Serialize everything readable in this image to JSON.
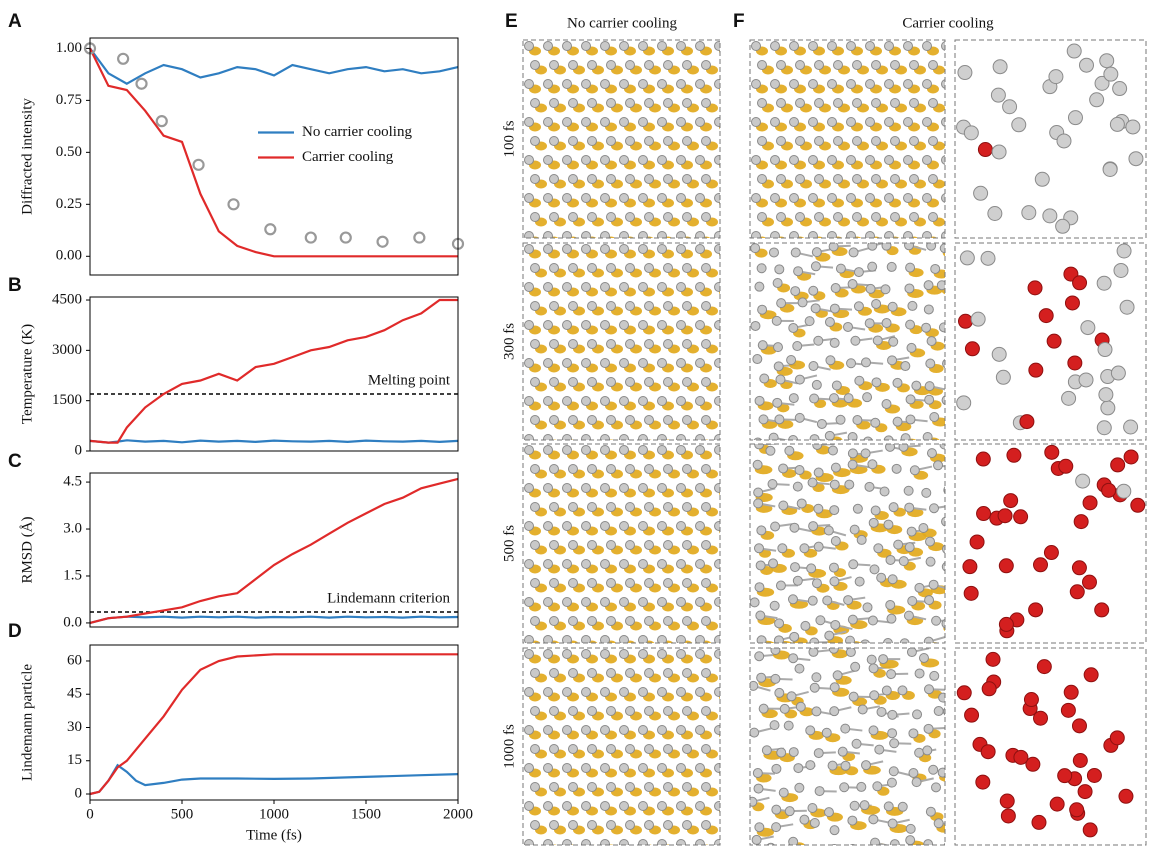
{
  "chart_data": [
    {
      "type": "line",
      "panel": "A",
      "ylabel": "Diffracted intensity",
      "xlim": [
        0,
        2000
      ],
      "ylim": [
        -0.09,
        1.05
      ],
      "yticks": [
        {
          "value": 0,
          "label": "0.00"
        },
        {
          "value": 0.25,
          "label": "0.25"
        },
        {
          "value": 0.5,
          "label": "0.50"
        },
        {
          "value": 0.75,
          "label": "0.75"
        },
        {
          "value": 1,
          "label": "1.00"
        }
      ],
      "legend": "center right",
      "x": [
        0,
        100,
        200,
        300,
        400,
        500,
        600,
        700,
        800,
        900,
        1000,
        1100,
        1200,
        1300,
        1400,
        1500,
        1600,
        1700,
        1800,
        1900,
        2000
      ],
      "series": [
        {
          "name": "No carrier cooling",
          "color": "#2f7ec1",
          "values": [
            1.0,
            0.88,
            0.83,
            0.88,
            0.92,
            0.9,
            0.86,
            0.88,
            0.91,
            0.9,
            0.87,
            0.92,
            0.9,
            0.88,
            0.9,
            0.91,
            0.89,
            0.9,
            0.88,
            0.89,
            0.91
          ]
        },
        {
          "name": "Carrier cooling",
          "color": "#e02a2a",
          "values": [
            1.0,
            0.82,
            0.8,
            0.7,
            0.58,
            0.55,
            0.3,
            0.12,
            0.05,
            0.02,
            0,
            0,
            0,
            0,
            0,
            0,
            0,
            0,
            0,
            0,
            0
          ]
        },
        {
          "type": "scatter",
          "color": "#999999",
          "x": [
            0,
            180,
            280,
            390,
            590,
            780,
            980,
            1200,
            1390,
            1590,
            1790,
            2000
          ],
          "values": [
            1.0,
            0.95,
            0.83,
            0.65,
            0.44,
            0.25,
            0.13,
            0.09,
            0.09,
            0.07,
            0.09,
            0.06
          ]
        }
      ]
    },
    {
      "type": "line",
      "panel": "B",
      "ylabel": "Temperature (K)",
      "xlim": [
        0,
        2000
      ],
      "ylim": [
        0,
        4590
      ],
      "yticks": [
        0,
        1500,
        3000,
        4500
      ],
      "hlines": [
        {
          "value": 1700,
          "label": "Melting point"
        }
      ],
      "x": [
        0,
        100,
        150,
        200,
        300,
        400,
        500,
        600,
        700,
        800,
        900,
        1000,
        1100,
        1200,
        1300,
        1400,
        1500,
        1600,
        1700,
        1800,
        1900,
        2000
      ],
      "series": [
        {
          "color": "#2f7ec1",
          "values": [
            300,
            250,
            280,
            320,
            280,
            300,
            260,
            310,
            280,
            300,
            270,
            310,
            290,
            280,
            300,
            270,
            310,
            290,
            280,
            300,
            270,
            300
          ]
        },
        {
          "color": "#e02a2a",
          "values": [
            300,
            250,
            250,
            700,
            1300,
            1700,
            2000,
            2100,
            2300,
            2100,
            2500,
            2600,
            2800,
            3000,
            3100,
            3300,
            3400,
            3600,
            3900,
            4100,
            4500,
            4500
          ]
        }
      ]
    },
    {
      "type": "line",
      "panel": "C",
      "ylabel": "RMSD (Å)",
      "xlim": [
        0,
        2000
      ],
      "ylim": [
        -0.13,
        4.79
      ],
      "yticks": [
        {
          "value": 0,
          "label": "0.0"
        },
        1.5,
        {
          "value": 3,
          "label": "3.0"
        },
        4.5
      ],
      "hlines": [
        {
          "value": 0.35,
          "label": "Lindemann criterion"
        }
      ],
      "x": [
        0,
        100,
        200,
        300,
        400,
        500,
        600,
        700,
        800,
        900,
        1000,
        1100,
        1200,
        1300,
        1400,
        1500,
        1600,
        1700,
        1800,
        1900,
        2000
      ],
      "series": [
        {
          "color": "#2f7ec1",
          "values": [
            0,
            0.15,
            0.2,
            0.18,
            0.2,
            0.17,
            0.2,
            0.18,
            0.2,
            0.17,
            0.19,
            0.18,
            0.2,
            0.17,
            0.2,
            0.18,
            0.19,
            0.17,
            0.2,
            0.18,
            0.19
          ]
        },
        {
          "color": "#e02a2a",
          "values": [
            0,
            0.15,
            0.2,
            0.3,
            0.4,
            0.5,
            0.7,
            0.85,
            0.95,
            1.4,
            1.85,
            2.2,
            2.5,
            2.85,
            3.2,
            3.5,
            3.8,
            4.0,
            4.3,
            4.45,
            4.6
          ]
        }
      ]
    },
    {
      "type": "line",
      "panel": "D",
      "ylabel": "Lindemann particle",
      "xlabel": "Time (fs)",
      "xlim": [
        0,
        2000
      ],
      "ylim": [
        -2.7,
        67.2
      ],
      "xticks": [
        0,
        500,
        1000,
        1500,
        2000
      ],
      "yticks": [
        0,
        15,
        30,
        45,
        60
      ],
      "x": [
        0,
        50,
        100,
        150,
        200,
        250,
        300,
        400,
        500,
        600,
        700,
        800,
        1000,
        1200,
        1400,
        1600,
        1800,
        2000
      ],
      "series": [
        {
          "color": "#2f7ec1",
          "values": [
            0,
            1,
            6,
            13,
            10,
            6,
            4,
            5,
            6.5,
            7,
            7,
            7,
            6.8,
            7,
            7.5,
            8,
            8.5,
            9
          ]
        },
        {
          "color": "#e02a2a",
          "values": [
            0,
            1,
            6,
            12,
            15,
            20,
            25,
            35,
            47,
            56,
            60,
            62,
            63,
            63,
            63,
            63,
            63,
            63
          ]
        }
      ]
    }
  ],
  "panels": {
    "E": {
      "label": "E",
      "title": "No carrier cooling"
    },
    "F": {
      "label": "F",
      "title": "Carrier cooling"
    },
    "rows": [
      "100 fs",
      "300 fs",
      "500 fs",
      "1000 fs"
    ]
  }
}
